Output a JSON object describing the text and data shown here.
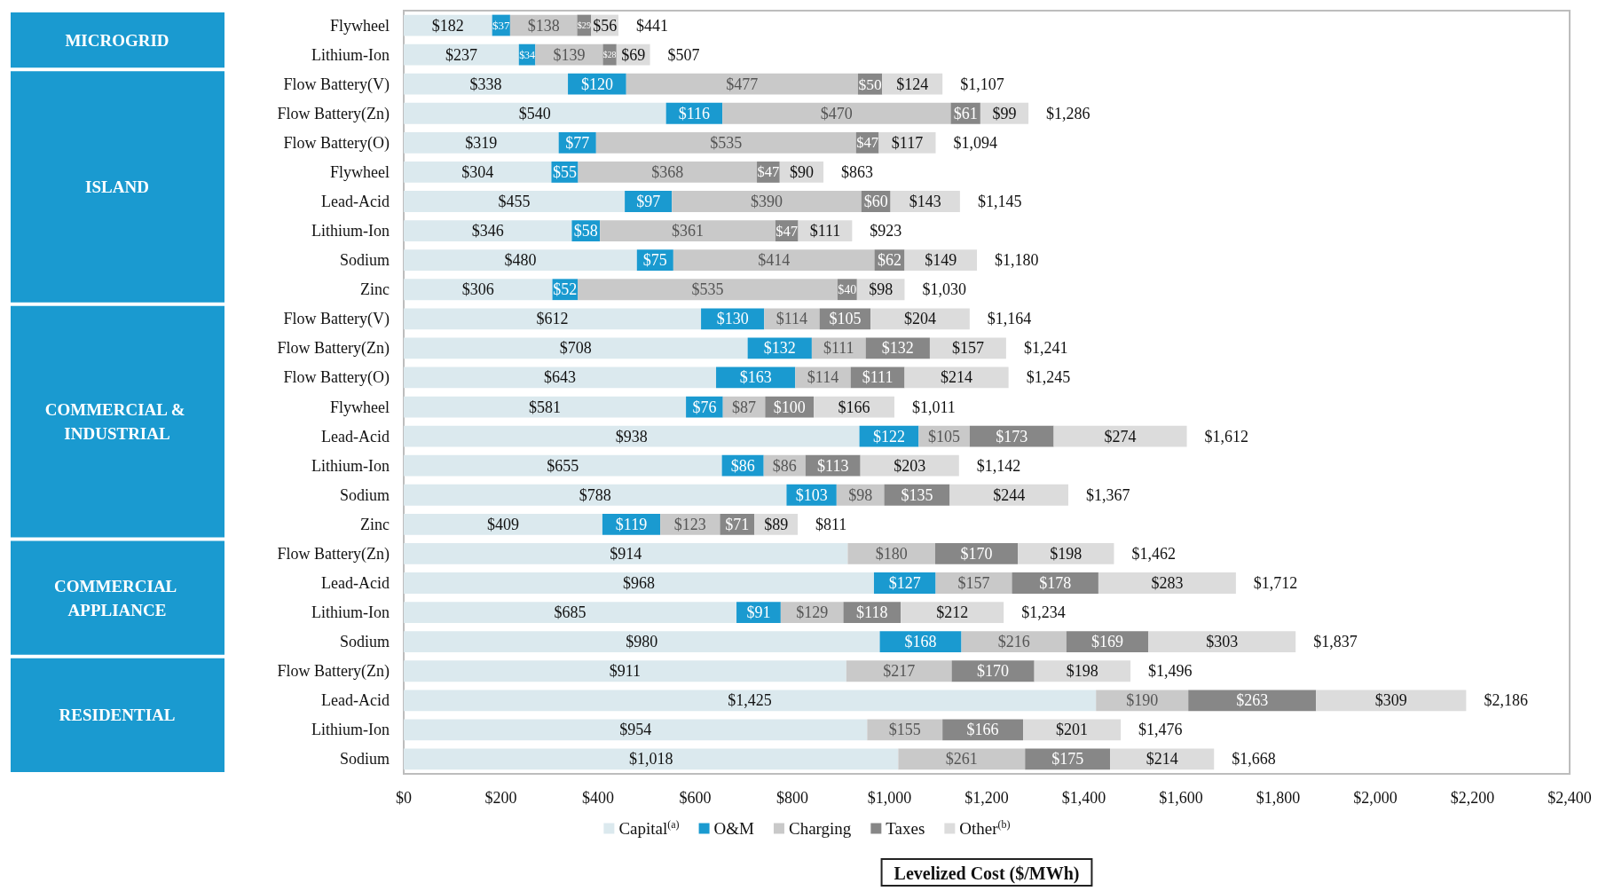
{
  "chart_data": {
    "type": "bar",
    "orientation": "horizontal",
    "stacked": true,
    "legend": "bottom",
    "xlabel": "Levelized Cost ($/MWh)",
    "annotations": [
      "MICROGRID",
      "ISLAND",
      "COMMERCIAL & INDUSTRIAL",
      "COMMERCIAL APPLIANCE",
      "RESIDENTIAL"
    ],
    "categories": [
      "Flywheel",
      "Lithium-Ion",
      "Flow Battery(V)",
      "Flow Battery(Zn)",
      "Flow Battery(O)",
      "Flywheel",
      "Lead-Acid",
      "Lithium-Ion",
      "Sodium",
      "Zinc",
      "Flow Battery(V)",
      "Flow Battery(Zn)",
      "Flow Battery(O)",
      "Flywheel",
      "Lead-Acid",
      "Lithium-Ion",
      "Sodium",
      "Zinc",
      "Flow Battery(Zn)",
      "Lead-Acid",
      "Lithium-Ion",
      "Sodium",
      "Flow Battery(Zn)",
      "Lead-Acid",
      "Lithium-Ion",
      "Sodium"
    ],
    "series": [
      {
        "name": "Capital$^{(a)}$",
        "color": "#dbe9ee",
        "values": [
          182,
          237,
          338,
          540,
          319,
          304,
          455,
          346,
          480,
          306,
          612,
          708,
          643,
          581,
          938,
          655,
          788,
          409,
          914,
          968,
          685,
          980,
          911,
          1425,
          954,
          1018
        ],
        "value_labels": [
          "$182",
          "$237",
          "$338",
          "$540",
          "$319",
          "$304",
          "$455",
          "$346",
          "$480",
          "$306",
          "$612",
          "$708",
          "$643",
          "$581",
          "$938",
          "$655",
          "$788",
          "$409",
          "$914",
          "$968",
          "$685",
          "$980",
          "$911",
          "$1,425",
          "$954",
          "$1,018"
        ]
      },
      {
        "name": "O&M",
        "color": "#1a9ad0",
        "values": [
          37,
          34,
          120,
          116,
          77,
          55,
          97,
          58,
          75,
          52,
          130,
          132,
          163,
          76,
          122,
          86,
          103,
          119,
          0,
          127,
          91,
          168,
          0,
          0,
          0,
          0
        ],
        "value_labels": [
          "$37",
          "$34",
          "$120",
          "$116",
          "$77",
          "$55",
          "$97",
          "$58",
          "$75",
          "$52",
          "$130",
          "$132",
          "$163",
          "$76",
          "$122",
          "$86",
          "$103",
          "$119",
          null,
          "$127",
          "$91",
          "$168",
          null,
          null,
          null,
          null
        ]
      },
      {
        "name": "Charging",
        "color": "#c9c9c9",
        "values": [
          138,
          139,
          477,
          470,
          535,
          368,
          390,
          361,
          414,
          535,
          114,
          111,
          114,
          87,
          105,
          86,
          98,
          123,
          180,
          157,
          129,
          216,
          217,
          190,
          155,
          261
        ],
        "value_labels": [
          "$138",
          "$139",
          "$477",
          "$470",
          "$535",
          "$368",
          "$390",
          "$361",
          "$414",
          "$535",
          "$114",
          "$111",
          "$114",
          "$87",
          "$105",
          "$86",
          "$98",
          "$123",
          "$180",
          "$157",
          "$129",
          "$216",
          "$217",
          "$190",
          "$155",
          "$261"
        ]
      },
      {
        "name": "Taxes",
        "color": "#878787",
        "values": [
          29,
          28,
          50,
          61,
          47,
          47,
          60,
          47,
          62,
          40,
          105,
          132,
          111,
          100,
          173,
          113,
          135,
          71,
          170,
          178,
          118,
          169,
          170,
          263,
          166,
          175
        ],
        "value_labels": [
          "$29",
          "$28",
          "$50",
          "$61",
          "$47",
          "$47",
          "$60",
          "$47",
          "$62",
          "$40",
          "$105",
          "$132",
          "$111",
          "$100",
          "$173",
          "$113",
          "$135",
          "$71",
          "$170",
          "$178",
          "$118",
          "$169",
          "$170",
          "$263",
          "$166",
          "$175"
        ]
      },
      {
        "name": "Other$^{(b)}$",
        "color": "#dcdcdc",
        "values": [
          56,
          69,
          124,
          99,
          117,
          90,
          143,
          111,
          149,
          98,
          204,
          157,
          214,
          166,
          274,
          203,
          244,
          89,
          198,
          283,
          212,
          303,
          198,
          309,
          201,
          214
        ],
        "value_labels": [
          "$56",
          "$69",
          "$124",
          "$99",
          "$117",
          "$90",
          "$143",
          "$111",
          "$149",
          "$98",
          "$204",
          "$157",
          "$214",
          "$166",
          "$274",
          "$203",
          "$244",
          "$89",
          "$198",
          "$283",
          "$212",
          "$303",
          "$198",
          "$309",
          "$201",
          "$214"
        ]
      }
    ],
    "totals": [
      "$441",
      "$507",
      "$1,107",
      "$1,286",
      "$1,094",
      "$863",
      "$1,145",
      "$923",
      "$1,180",
      "$1,030",
      "$1,164",
      "$1,241",
      "$1,245",
      "$1,011",
      "$1,612",
      "$1,142",
      "$1,367",
      "$811",
      "$1,462",
      "$1,712",
      "$1,234",
      "$1,837",
      "$1,496",
      "$2,186",
      "$1,476",
      "$1,668"
    ],
    "xlim": [
      0,
      2400
    ],
    "xticks": [
      {
        "value": 0,
        "label": "$0"
      },
      {
        "value": 200,
        "label": "$200"
      },
      {
        "value": 400,
        "label": "$400"
      },
      {
        "value": 600,
        "label": "$600"
      },
      {
        "value": 800,
        "label": "$800"
      },
      {
        "value": 1000,
        "label": "$1,000"
      },
      {
        "value": 1200,
        "label": "$1,200"
      },
      {
        "value": 1400,
        "label": "$1,400"
      },
      {
        "value": 1600,
        "label": "$1,600"
      },
      {
        "value": 1800,
        "label": "$1,800"
      },
      {
        "value": 2000,
        "label": "$2,000"
      },
      {
        "value": 2200,
        "label": "$2,200"
      },
      {
        "value": 2400,
        "label": "$2,400"
      }
    ]
  }
}
